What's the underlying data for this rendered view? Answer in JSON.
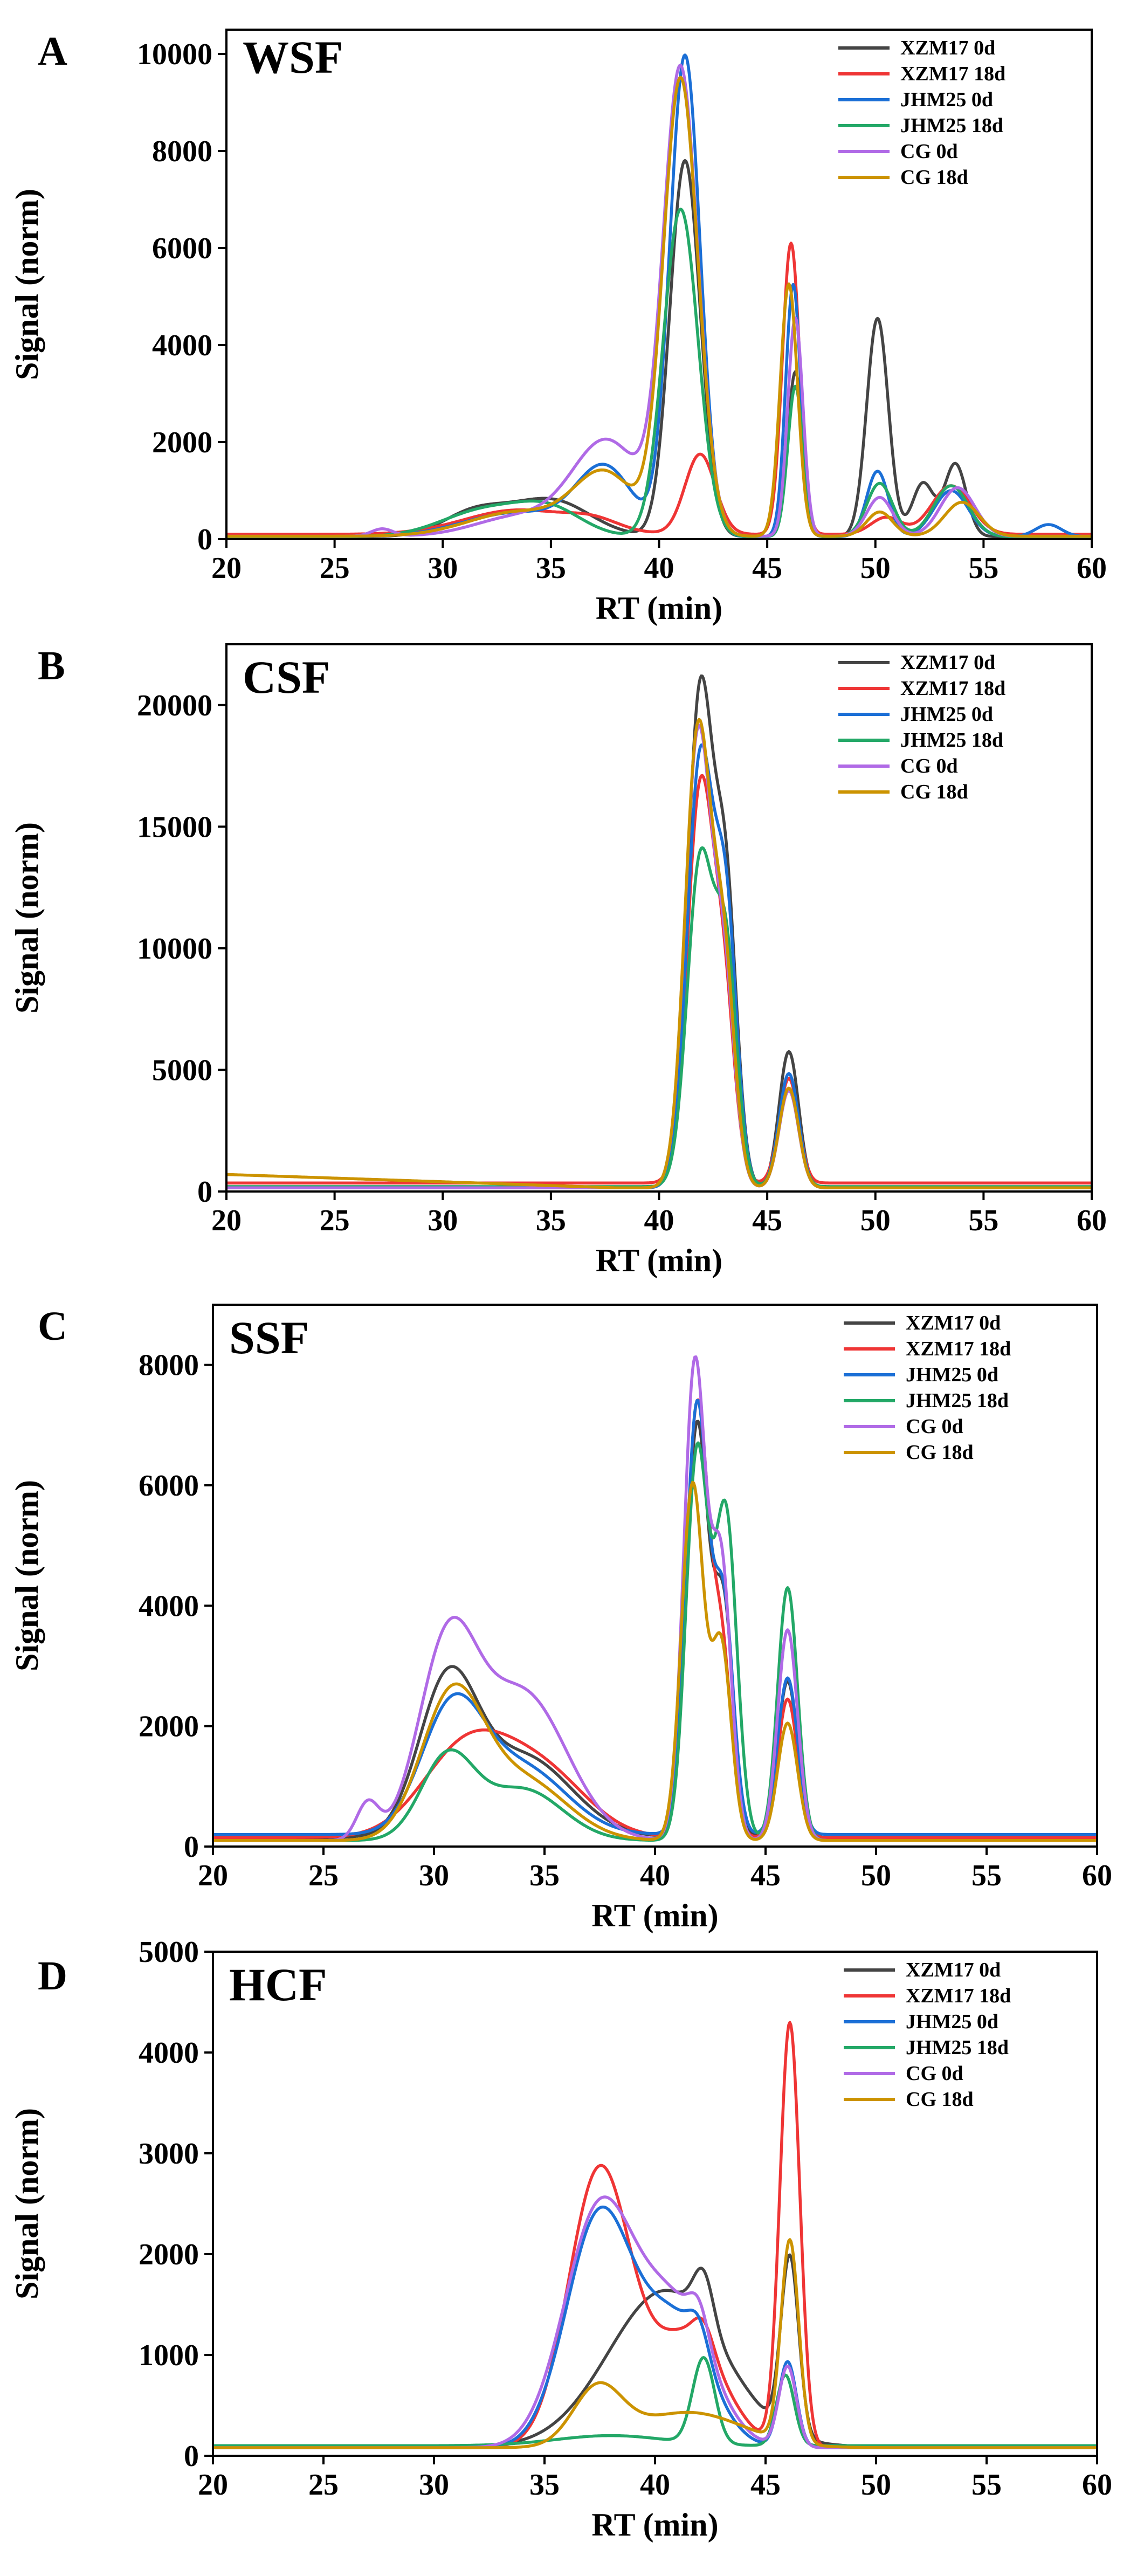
{
  "colors": {
    "XZM17 0d": "#444444",
    "XZM17 18d": "#ef3535",
    "JHM25 0d": "#1b6fd6",
    "JHM25 18d": "#23a867",
    "CG 0d": "#b06ae6",
    "CG 18d": "#cc9300"
  },
  "chart_data": [
    {
      "type": "line",
      "panel": "A",
      "title": "WSF",
      "xlabel": "RT (min)",
      "ylabel": "Signal (norm)",
      "xlim": [
        20,
        60
      ],
      "ylim": [
        0,
        10500
      ],
      "xticks": [
        20,
        25,
        30,
        35,
        40,
        45,
        50,
        55,
        60
      ],
      "yticks": [
        0,
        2000,
        4000,
        6000,
        8000,
        10000
      ],
      "legend": [
        "XZM17 0d",
        "XZM17 18d",
        "JHM25 0d",
        "JHM25 18d",
        "CG 0d",
        "CG 18d"
      ],
      "legend_placement": "top-right",
      "series": [
        {
          "name": "XZM17 0d",
          "peaks": [
            [
              31.5,
              500,
              1.5
            ],
            [
              35,
              750,
              1.8
            ],
            [
              41.2,
              7750,
              0.7
            ],
            [
              46.3,
              3400,
              0.35
            ],
            [
              50.1,
              4500,
              0.5
            ],
            [
              52.2,
              1100,
              0.5
            ],
            [
              53.7,
              1500,
              0.5
            ]
          ],
          "baseline": 50
        },
        {
          "name": "XZM17 18d",
          "peaks": [
            [
              33.5,
              500,
              2.5
            ],
            [
              37,
              200,
              1.2
            ],
            [
              41.9,
              1650,
              0.7
            ],
            [
              46.1,
              6000,
              0.4
            ],
            [
              50.5,
              350,
              0.7
            ],
            [
              53.5,
              1000,
              0.9
            ]
          ],
          "baseline": 100
        },
        {
          "name": "JHM25 0d",
          "peaks": [
            [
              33.5,
              500,
              2.5
            ],
            [
              37.5,
              1350,
              1.3
            ],
            [
              41.2,
              9900,
              0.7
            ],
            [
              46.2,
              5200,
              0.35
            ],
            [
              50.1,
              1350,
              0.5
            ],
            [
              53.5,
              950,
              0.8
            ],
            [
              58,
              250,
              0.6
            ]
          ],
          "baseline": 50
        },
        {
          "name": "JHM25 18d",
          "peaks": [
            [
              32,
              550,
              2.0
            ],
            [
              35,
              500,
              1.5
            ],
            [
              41,
              6750,
              0.8
            ],
            [
              46.3,
              3100,
              0.35
            ],
            [
              50.2,
              1100,
              0.6
            ],
            [
              53.5,
              1050,
              0.8
            ]
          ],
          "baseline": 50
        },
        {
          "name": "CG 0d",
          "peaks": [
            [
              27.2,
              150,
              0.5
            ],
            [
              33.5,
              400,
              2.0
            ],
            [
              37.6,
              1950,
              1.6
            ],
            [
              41,
              9500,
              0.8
            ],
            [
              46.3,
              4500,
              0.35
            ],
            [
              50.2,
              800,
              0.6
            ],
            [
              53.8,
              1000,
              0.8
            ]
          ],
          "baseline": 60
        },
        {
          "name": "CG 18d",
          "peaks": [
            [
              33.5,
              500,
              2.3
            ],
            [
              37.5,
              1250,
              1.4
            ],
            [
              41,
              9400,
              0.8
            ],
            [
              46,
              5200,
              0.4
            ],
            [
              50.2,
              500,
              0.6
            ],
            [
              54,
              700,
              0.8
            ]
          ],
          "baseline": 60
        }
      ]
    },
    {
      "type": "line",
      "panel": "B",
      "title": "CSF",
      "xlabel": "RT (min)",
      "ylabel": "Signal (norm)",
      "xlim": [
        20,
        60
      ],
      "ylim": [
        0,
        22500
      ],
      "xticks": [
        20,
        25,
        30,
        35,
        40,
        45,
        50,
        55,
        60
      ],
      "yticks": [
        0,
        5000,
        10000,
        15000,
        20000
      ],
      "legend": [
        "XZM17 0d",
        "XZM17 18d",
        "JHM25 0d",
        "JHM25 18d",
        "CG 0d",
        "CG 18d"
      ],
      "legend_placement": "top-right",
      "series": [
        {
          "name": "XZM17 0d",
          "peaks": [
            [
              41.9,
              20300,
              0.6
            ],
            [
              43.1,
              11500,
              0.5
            ],
            [
              46,
              5600,
              0.45
            ]
          ],
          "baseline": 150
        },
        {
          "name": "XZM17 18d",
          "peaks": [
            [
              41.9,
              16000,
              0.6
            ],
            [
              43,
              7200,
              0.5
            ],
            [
              46,
              4300,
              0.45
            ]
          ],
          "baseline": 350
        },
        {
          "name": "JHM25 0d",
          "peaks": [
            [
              41.9,
              17500,
              0.6
            ],
            [
              43.1,
              10800,
              0.5
            ],
            [
              46,
              4700,
              0.45
            ]
          ],
          "baseline": 150
        },
        {
          "name": "JHM25 18d",
          "peaks": [
            [
              41.9,
              13300,
              0.6
            ],
            [
              43.1,
              9200,
              0.5
            ],
            [
              46,
              4000,
              0.45
            ]
          ],
          "baseline": 200
        },
        {
          "name": "CG 0d",
          "peaks": [
            [
              41.8,
              18500,
              0.6
            ],
            [
              43,
              8300,
              0.5
            ],
            [
              46,
              4000,
              0.45
            ]
          ],
          "baseline": 150
        },
        {
          "name": "CG 18d",
          "peaks": [
            [
              41.8,
              18700,
              0.6
            ],
            [
              43,
              8800,
              0.5
            ],
            [
              46,
              4100,
              0.45
            ]
          ],
          "baseline": 150,
          "ramp": [
            [
              20,
              700
            ],
            [
              30,
              400
            ],
            [
              38,
              150
            ]
          ]
        }
      ]
    },
    {
      "type": "line",
      "panel": "C",
      "title": "SSF",
      "xlabel": "RT (min)",
      "ylabel": "Signal (norm)",
      "xlim": [
        20,
        60
      ],
      "ylim": [
        0,
        9000
      ],
      "xticks": [
        20,
        25,
        30,
        35,
        40,
        45,
        50,
        55,
        60
      ],
      "yticks": [
        0,
        2000,
        4000,
        6000,
        8000
      ],
      "legend": [
        "XZM17 0d",
        "XZM17 18d",
        "JHM25 0d",
        "JHM25 18d",
        "CG 0d",
        "CG 18d"
      ],
      "legend_placement": "top-right",
      "series": [
        {
          "name": "XZM17 0d",
          "peaks": [
            [
              30.6,
              2400,
              1.3
            ],
            [
              34,
              1350,
              2.2
            ],
            [
              41.9,
              6800,
              0.5
            ],
            [
              43.1,
              3800,
              0.45
            ],
            [
              46,
              2600,
              0.45
            ]
          ],
          "baseline": 150
        },
        {
          "name": "XZM17 18d",
          "peaks": [
            [
              31.5,
              1500,
              2.0
            ],
            [
              35,
              1000,
              2.0
            ],
            [
              41.9,
              7100,
              0.5
            ],
            [
              43,
              3100,
              0.45
            ],
            [
              46,
              2300,
              0.45
            ]
          ],
          "baseline": 150
        },
        {
          "name": "JHM25 0d",
          "peaks": [
            [
              30.8,
              2000,
              1.4
            ],
            [
              34,
              1100,
              2.0
            ],
            [
              41.9,
              7100,
              0.5
            ],
            [
              43.1,
              3800,
              0.45
            ],
            [
              46,
              2600,
              0.45
            ]
          ],
          "baseline": 200
        },
        {
          "name": "JHM25 18d",
          "peaks": [
            [
              30.6,
              1350,
              1.2
            ],
            [
              34,
              850,
              1.8
            ],
            [
              41.9,
              6400,
              0.5
            ],
            [
              43.2,
              5400,
              0.5
            ],
            [
              46,
              4200,
              0.45
            ]
          ],
          "baseline": 100
        },
        {
          "name": "CG 0d",
          "peaks": [
            [
              27,
              600,
              0.5
            ],
            [
              30.6,
              3050,
              1.3
            ],
            [
              34,
              2450,
              2.0
            ],
            [
              41.8,
              7900,
              0.5
            ],
            [
              43,
              4500,
              0.45
            ],
            [
              46,
              3500,
              0.45
            ]
          ],
          "baseline": 100
        },
        {
          "name": "CG 18d",
          "peaks": [
            [
              30.8,
              2300,
              1.4
            ],
            [
              34,
              1000,
              2.0
            ],
            [
              41.7,
              5900,
              0.5
            ],
            [
              43,
              3200,
              0.45
            ],
            [
              46,
              1950,
              0.45
            ]
          ],
          "baseline": 100
        }
      ]
    },
    {
      "type": "line",
      "panel": "D",
      "title": "HCF",
      "xlabel": "RT (min)",
      "ylabel": "Signal (norm)",
      "xlim": [
        20,
        60
      ],
      "ylim": [
        0,
        5000
      ],
      "xticks": [
        20,
        25,
        30,
        35,
        40,
        45,
        50,
        55,
        60
      ],
      "yticks": [
        0,
        1000,
        2000,
        3000,
        4000,
        5000
      ],
      "legend": [
        "XZM17 0d",
        "XZM17 18d",
        "JHM25 0d",
        "JHM25 18d",
        "CG 0d",
        "CG 18d"
      ],
      "legend_placement": "top-right",
      "series": [
        {
          "name": "XZM17 0d",
          "peaks": [
            [
              40.5,
              1550,
              2.6
            ],
            [
              42.2,
              500,
              0.45
            ],
            [
              46.1,
              1750,
              0.4
            ]
          ],
          "baseline": 90
        },
        {
          "name": "XZM17 18d",
          "peaks": [
            [
              37.5,
              2750,
              1.4
            ],
            [
              41.5,
              1100,
              1.6
            ],
            [
              42.2,
              250,
              0.45
            ],
            [
              46.1,
              4200,
              0.45
            ]
          ],
          "baseline": 80
        },
        {
          "name": "JHM25 0d",
          "peaks": [
            [
              37.5,
              2300,
              1.5
            ],
            [
              41,
              1200,
              1.5
            ],
            [
              42,
              300,
              0.45
            ],
            [
              46,
              850,
              0.4
            ]
          ],
          "baseline": 80
        },
        {
          "name": "JHM25 18d",
          "peaks": [
            [
              38,
              100,
              2.5
            ],
            [
              42.2,
              850,
              0.5
            ],
            [
              45.9,
              700,
              0.4
            ]
          ],
          "baseline": 100
        },
        {
          "name": "CG 0d",
          "peaks": [
            [
              37.5,
              2350,
              1.6
            ],
            [
              41,
              1300,
              1.6
            ],
            [
              42,
              350,
              0.45
            ],
            [
              46,
              800,
              0.4
            ]
          ],
          "baseline": 80
        },
        {
          "name": "CG 18d",
          "peaks": [
            [
              37.4,
              550,
              1.1
            ],
            [
              41.5,
              350,
              2.5
            ],
            [
              46.1,
              2000,
              0.4
            ]
          ],
          "baseline": 80
        }
      ]
    }
  ]
}
